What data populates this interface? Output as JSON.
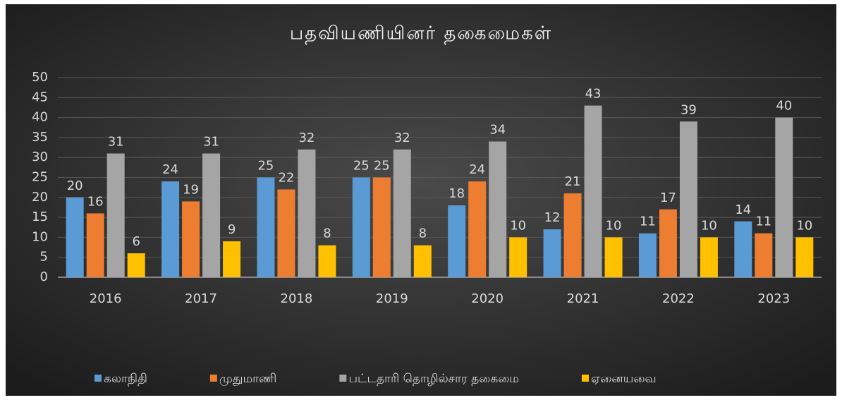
{
  "chart_data": {
    "type": "bar",
    "title": "பதவியணியினர் தகைமைகள்",
    "categories": [
      "2016",
      "2017",
      "2018",
      "2019",
      "2020",
      "2021",
      "2022",
      "2023"
    ],
    "series": [
      {
        "name": "கலாநிதி",
        "color": "#5b9bd5",
        "values": [
          20,
          24,
          25,
          25,
          18,
          12,
          11,
          14
        ]
      },
      {
        "name": "முதுமாணி",
        "color": "#ed7d31",
        "values": [
          16,
          19,
          22,
          25,
          24,
          21,
          17,
          11
        ]
      },
      {
        "name": "பட்டதாரி தொழில்சார தகைமை",
        "color": "#a5a5a5",
        "values": [
          31,
          31,
          32,
          32,
          34,
          43,
          39,
          40
        ]
      },
      {
        "name": "ஏனையவை",
        "color": "#ffc000",
        "values": [
          6,
          9,
          8,
          8,
          10,
          10,
          10,
          10
        ]
      }
    ],
    "ylim": [
      0,
      50
    ],
    "yticks": [
      0,
      5,
      10,
      15,
      20,
      25,
      30,
      35,
      40,
      45,
      50
    ],
    "grid": true,
    "legend": "bottom"
  }
}
